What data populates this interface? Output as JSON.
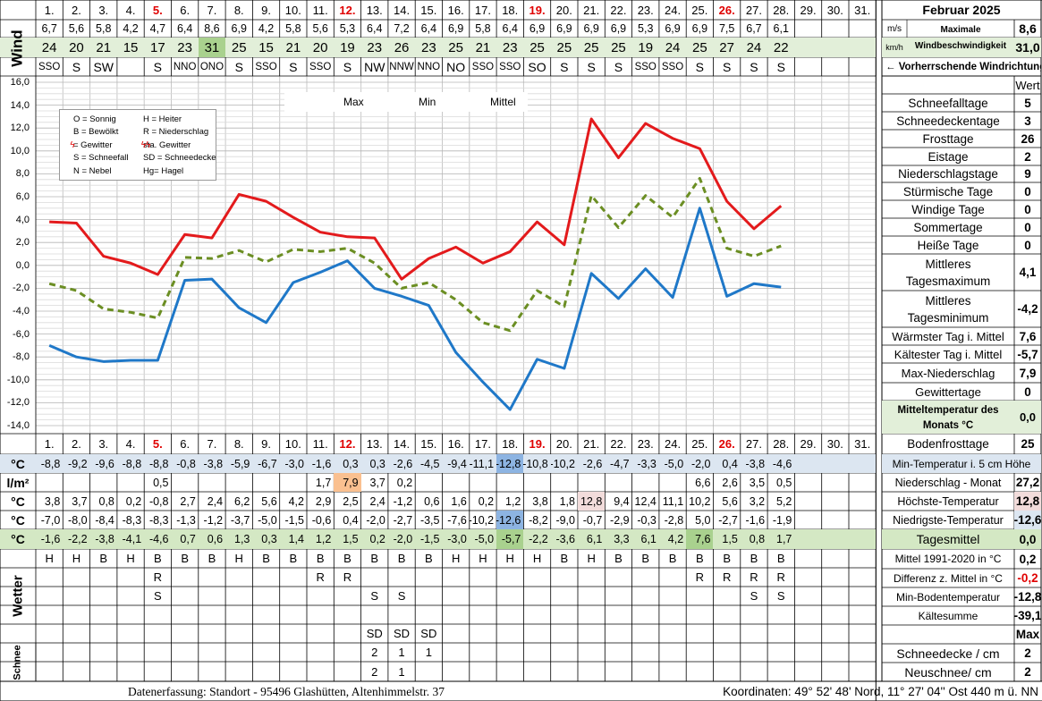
{
  "header": {
    "title": "Februar 2025",
    "days": [
      "1.",
      "2.",
      "3.",
      "4.",
      "5.",
      "6.",
      "7.",
      "8.",
      "9.",
      "10.",
      "11.",
      "12.",
      "13.",
      "14.",
      "15.",
      "16.",
      "17.",
      "18.",
      "19.",
      "20.",
      "21.",
      "22.",
      "23.",
      "24.",
      "25.",
      "26.",
      "27.",
      "28.",
      "29.",
      "30.",
      "31."
    ],
    "red_days": [
      5,
      12,
      19,
      26
    ]
  },
  "wind": {
    "label": "Wind",
    "ms": [
      "6,7",
      "5,6",
      "5,8",
      "4,2",
      "4,7",
      "6,4",
      "8,6",
      "6,9",
      "4,2",
      "5,8",
      "5,6",
      "5,3",
      "6,4",
      "7,2",
      "6,4",
      "6,9",
      "5,8",
      "6,4",
      "6,9",
      "6,9",
      "6,9",
      "6,9",
      "5,3",
      "6,9",
      "6,9",
      "7,5",
      "6,7",
      "6,1",
      "",
      "",
      ""
    ],
    "kmh": [
      "24",
      "20",
      "21",
      "15",
      "17",
      "23",
      "31",
      "25",
      "15",
      "21",
      "20",
      "19",
      "23",
      "26",
      "23",
      "25",
      "21",
      "23",
      "25",
      "25",
      "25",
      "25",
      "19",
      "24",
      "25",
      "27",
      "24",
      "22",
      "",
      "",
      ""
    ],
    "dir": [
      "SSO",
      "S",
      "SW",
      "",
      "S",
      "NNO",
      "ONO",
      "S",
      "SSO",
      "S",
      "SSO",
      "S",
      "NW",
      "NNW",
      "NNO",
      "NO",
      "SSO",
      "SSO",
      "SO",
      "S",
      "S",
      "S",
      "SSO",
      "SSO",
      "S",
      "S",
      "S",
      "S",
      "",
      "",
      ""
    ],
    "unit_ms": "m/s",
    "unit_kmh": "km/h",
    "max_label_1": "Maximale",
    "max_label_2": "Windbeschwindigkeit",
    "max_ms": "8,6",
    "max_kmh": "31,0",
    "dir_label": "← Vorherrschende Windrichtung"
  },
  "legend": {
    "max": "Max",
    "min": "Min",
    "mittel": "Mittel",
    "color_max": "#e31a1c",
    "color_min": "#1f78c8",
    "color_mittel": "#6b8e23"
  },
  "key": [
    [
      "O = Sonnig",
      "H = Heiter"
    ],
    [
      "B = Bewölkt",
      "R = Niederschlag"
    ],
    [
      "= Gewitter",
      "sta. Gewitter"
    ],
    [
      "S = Schneefall",
      "SD = Schneedecke"
    ],
    [
      "N = Nebel",
      "Hg= Hagel"
    ]
  ],
  "chart_data": {
    "type": "line",
    "x": [
      1,
      2,
      3,
      4,
      5,
      6,
      7,
      8,
      9,
      10,
      11,
      12,
      13,
      14,
      15,
      16,
      17,
      18,
      19,
      20,
      21,
      22,
      23,
      24,
      25,
      26,
      27,
      28
    ],
    "ylim": [
      -14,
      16
    ],
    "yticks": [
      "16,0",
      "14,0",
      "12,0",
      "10,0",
      "8,0",
      "6,0",
      "4,0",
      "2,0",
      "0,0",
      "-2,0",
      "-4,0",
      "-6,0",
      "-8,0",
      "-10,0",
      "-12,0",
      "-14,0"
    ],
    "series": [
      {
        "name": "Max",
        "values": [
          3.8,
          3.7,
          0.8,
          0.2,
          -0.8,
          2.7,
          2.4,
          6.2,
          5.6,
          4.2,
          2.9,
          2.5,
          2.4,
          -1.2,
          0.6,
          1.6,
          0.2,
          1.2,
          3.8,
          1.8,
          12.8,
          9.4,
          12.4,
          11.1,
          10.2,
          5.6,
          3.2,
          5.2
        ]
      },
      {
        "name": "Min",
        "values": [
          -7.0,
          -8.0,
          -8.4,
          -8.3,
          -8.3,
          -1.3,
          -1.2,
          -3.7,
          -5.0,
          -1.5,
          -0.6,
          0.4,
          -2.0,
          -2.7,
          -3.5,
          -7.6,
          -10.2,
          -12.6,
          -8.2,
          -9.0,
          -0.7,
          -2.9,
          -0.3,
          -2.8,
          5.0,
          -2.7,
          -1.6,
          -1.9
        ]
      },
      {
        "name": "Mittel",
        "values": [
          -1.6,
          -2.2,
          -3.8,
          -4.1,
          -4.6,
          0.7,
          0.6,
          1.3,
          0.3,
          1.4,
          1.2,
          1.5,
          0.2,
          -2.0,
          -1.5,
          -3.0,
          -5.0,
          -5.7,
          -2.2,
          -3.6,
          6.1,
          3.3,
          6.1,
          4.2,
          7.6,
          1.5,
          0.8,
          1.7
        ]
      }
    ]
  },
  "rows": {
    "boden": {
      "unit": "°C",
      "values": [
        "-8,8",
        "-9,2",
        "-9,6",
        "-8,8",
        "-8,8",
        "-0,8",
        "-3,8",
        "-5,9",
        "-6,7",
        "-3,0",
        "-1,6",
        "0,3",
        "0,3",
        "-2,6",
        "-4,5",
        "-9,4",
        "-11,1",
        "-12,8",
        "-10,8",
        "-10,2",
        "-2,6",
        "-4,7",
        "-3,3",
        "-5,0",
        "-2,0",
        "0,4",
        "-3,8",
        "-4,6",
        "",
        "",
        ""
      ],
      "label": "Min-Temperatur i. 5 cm Höhe"
    },
    "nieder": {
      "unit": "l/m²",
      "values": [
        "",
        "",
        "",
        "",
        "0,5",
        "",
        "",
        "",
        "",
        "",
        "1,7",
        "7,9",
        "3,7",
        "0,2",
        "",
        "",
        "",
        "",
        "",
        "",
        "",
        "",
        "",
        "",
        "6,6",
        "2,6",
        "3,5",
        "0,5",
        "",
        "",
        ""
      ],
      "label": "Niederschlag - Monat",
      "value": "27,2"
    },
    "hoechst": {
      "unit": "°C",
      "values": [
        "3,8",
        "3,7",
        "0,8",
        "0,2",
        "-0,8",
        "2,7",
        "2,4",
        "6,2",
        "5,6",
        "4,2",
        "2,9",
        "2,5",
        "2,4",
        "-1,2",
        "0,6",
        "1,6",
        "0,2",
        "1,2",
        "3,8",
        "1,8",
        "12,8",
        "9,4",
        "12,4",
        "11,1",
        "10,2",
        "5,6",
        "3,2",
        "5,2",
        "",
        "",
        ""
      ],
      "label": "Höchste-Temperatur",
      "value": "12,8"
    },
    "niedrig": {
      "unit": "°C",
      "values": [
        "-7,0",
        "-8,0",
        "-8,4",
        "-8,3",
        "-8,3",
        "-1,3",
        "-1,2",
        "-3,7",
        "-5,0",
        "-1,5",
        "-0,6",
        "0,4",
        "-2,0",
        "-2,7",
        "-3,5",
        "-7,6",
        "-10,2",
        "-12,6",
        "-8,2",
        "-9,0",
        "-0,7",
        "-2,9",
        "-0,3",
        "-2,8",
        "5,0",
        "-2,7",
        "-1,6",
        "-1,9",
        "",
        "",
        ""
      ],
      "label": "Niedrigste-Temperatur",
      "value": "-12,6"
    },
    "mittel": {
      "unit": "°C",
      "values": [
        "-1,6",
        "-2,2",
        "-3,8",
        "-4,1",
        "-4,6",
        "0,7",
        "0,6",
        "1,3",
        "0,3",
        "1,4",
        "1,2",
        "1,5",
        "0,2",
        "-2,0",
        "-1,5",
        "-3,0",
        "-5,0",
        "-5,7",
        "-2,2",
        "-3,6",
        "6,1",
        "3,3",
        "6,1",
        "4,2",
        "7,6",
        "1,5",
        "0,8",
        "1,7",
        "",
        "",
        ""
      ],
      "label": "Tagesmittel",
      "value": "0,0"
    }
  },
  "wetter": {
    "label": "Wetter",
    "line1": [
      "H",
      "H",
      "B",
      "H",
      "B",
      "B",
      "B",
      "H",
      "B",
      "B",
      "B",
      "B",
      "B",
      "B",
      "B",
      "H",
      "H",
      "H",
      "H",
      "B",
      "H",
      "B",
      "B",
      "B",
      "B",
      "B",
      "B",
      "B",
      "",
      "",
      ""
    ],
    "line2": [
      "",
      "",
      "",
      "",
      "R",
      "",
      "",
      "",
      "",
      "",
      "R",
      "R",
      "",
      "",
      "",
      "",
      "",
      "",
      "",
      "",
      "",
      "",
      "",
      "",
      "R",
      "R",
      "R",
      "R",
      "",
      "",
      ""
    ],
    "line3": [
      "",
      "",
      "",
      "",
      "S",
      "",
      "",
      "",
      "",
      "",
      "",
      "",
      "S",
      "S",
      "",
      "",
      "",
      "",
      "",
      "",
      "",
      "",
      "",
      "",
      "",
      "",
      "S",
      "S",
      "",
      "",
      ""
    ],
    "line5": [
      "",
      "",
      "",
      "",
      "",
      "",
      "",
      "",
      "",
      "",
      "",
      "",
      "SD",
      "SD",
      "SD",
      "",
      "",
      "",
      "",
      "",
      "",
      "",
      "",
      "",
      "",
      "",
      "",
      "",
      "",
      "",
      ""
    ]
  },
  "schnee": {
    "label": "Schnee",
    "decke": [
      "",
      "",
      "",
      "",
      "",
      "",
      "",
      "",
      "",
      "",
      "",
      "",
      "2",
      "1",
      "1",
      "",
      "",
      "",
      "",
      "",
      "",
      "",
      "",
      "",
      "",
      "",
      "",
      "",
      "",
      "",
      ""
    ],
    "neu": [
      "",
      "",
      "",
      "",
      "",
      "",
      "",
      "",
      "",
      "",
      "",
      "",
      "2",
      "1",
      "",
      "",
      "",
      "",
      "",
      "",
      "",
      "",
      "",
      "",
      "",
      "",
      "",
      "",
      "",
      "",
      ""
    ]
  },
  "stats": {
    "wert_label": "Wert",
    "items": [
      {
        "label": "Schneefalltage",
        "value": "5"
      },
      {
        "label": "Schneedeckentage",
        "value": "3"
      },
      {
        "label": "Frosttage",
        "value": "26"
      },
      {
        "label": "Eistage",
        "value": "2"
      },
      {
        "label": "Niederschlagstage",
        "value": "9"
      },
      {
        "label": "Stürmische Tage",
        "value": "0"
      },
      {
        "label": "Windige Tage",
        "value": "0"
      },
      {
        "label": "Sommertage",
        "value": "0"
      },
      {
        "label": "Heiße Tage",
        "value": "0"
      }
    ],
    "mittl_max_1": "Mittleres",
    "mittl_max_2": "Tagesmaximum",
    "mittl_max_value": "4,1",
    "mittl_min_1": "Mittleres",
    "mittl_min_2": "Tagesminimum",
    "mittl_min_value": "-4,2",
    "items2": [
      {
        "label": "Wärmster Tag i. Mittel",
        "value": "7,6"
      },
      {
        "label": "Kältester Tag i. Mittel",
        "value": "-5,7"
      },
      {
        "label": "Max-Niederschlag",
        "value": "7,9"
      },
      {
        "label": "Gewittertage",
        "value": "0"
      }
    ],
    "mitteltemp_1": "Mitteltemperatur des",
    "mitteltemp_2": "Monats °C",
    "mitteltemp_value": "0,0",
    "bodenfrost_label": "Bodenfrosttage",
    "bodenfrost_value": "25",
    "mittel9120_label": "Mittel 1991-2020 in °C",
    "mittel9120_value": "0,2",
    "diff_label": "Differenz z. Mittel in °C",
    "diff_value": "-0,2",
    "minboden_label": "Min-Bodentemperatur",
    "minboden_value": "-12,8",
    "kaelte_label": "Kältesumme",
    "kaelte_value": "-39,1",
    "max_label": "Max",
    "schneedecke_label": "Schneedecke / cm",
    "schneedecke_value": "2",
    "neuschnee_label": "Neuschnee/ cm",
    "neuschnee_value": "2"
  },
  "footer": {
    "left": "Datenerfassung:  Standort -  95496  Glashütten, Altenhimmelstr. 37",
    "right": "Koordinaten:  49° 52' 48' Nord,   11° 27' 04'' Ost   440 m ü. NN"
  }
}
